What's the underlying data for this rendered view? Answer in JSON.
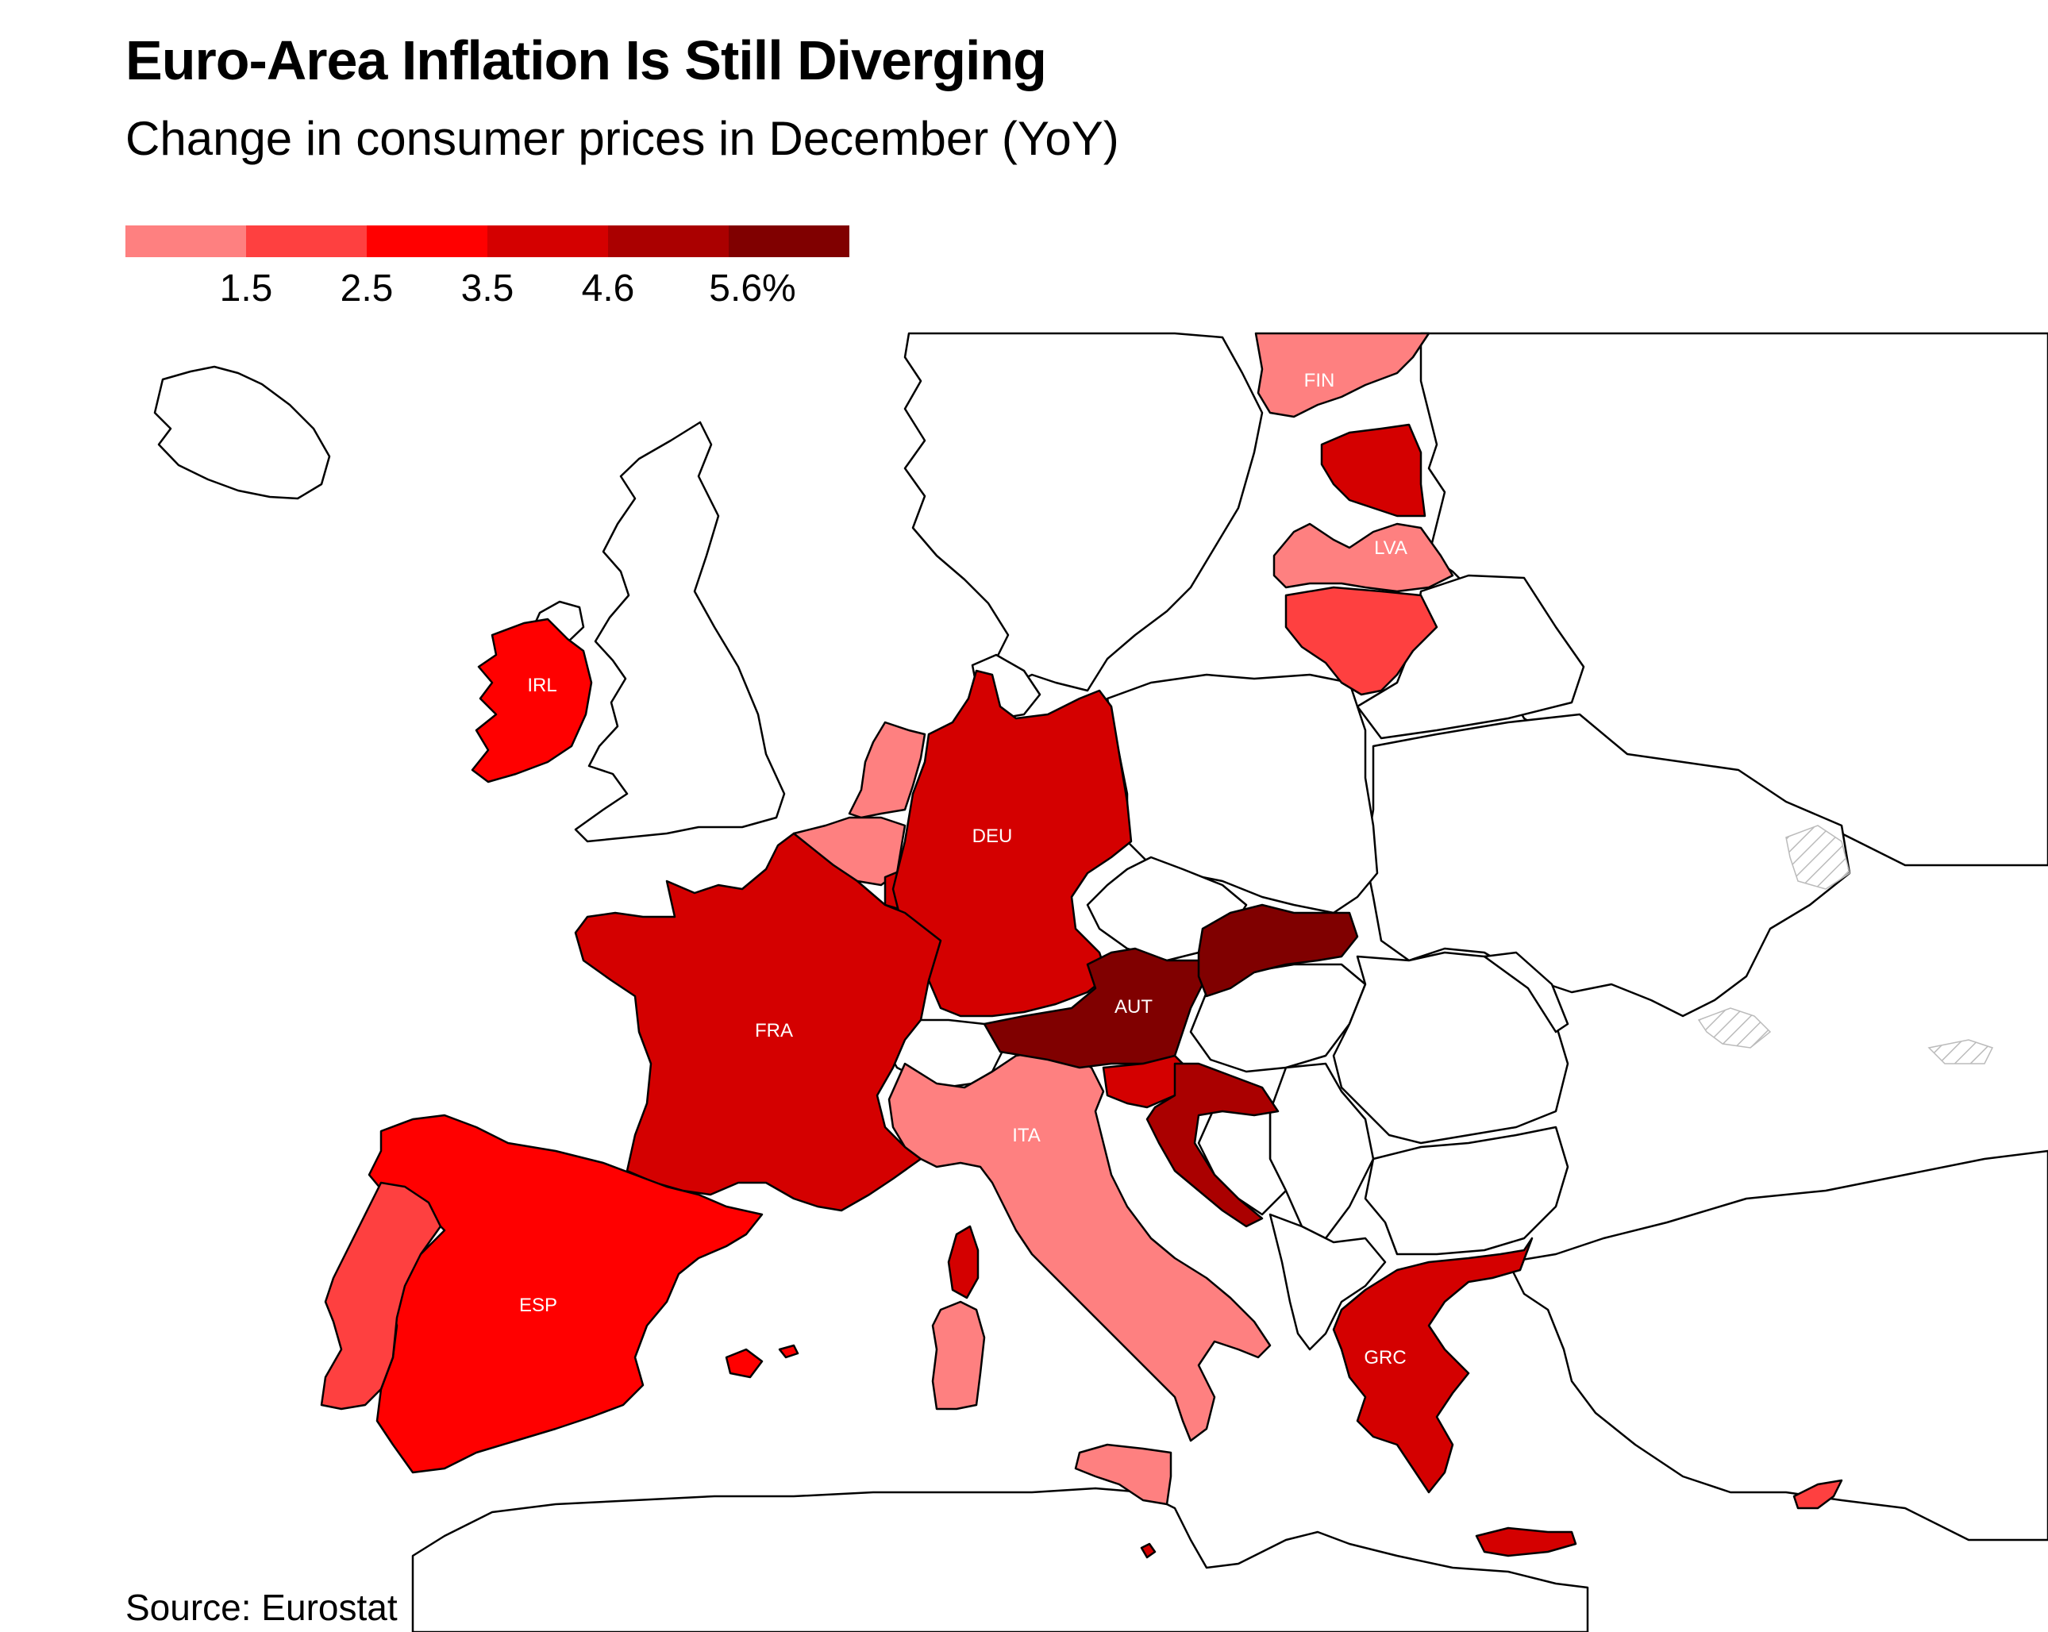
{
  "title": "Euro-Area Inflation Is Still Diverging",
  "subtitle": "Change in consumer prices in December (YoY)",
  "source": "Source: Eurostat",
  "legend": {
    "colors": [
      "#fe8080",
      "#fe4040",
      "#ff0000",
      "#d40000",
      "#aa0000",
      "#800000"
    ],
    "labels": [
      "1.5",
      "2.5",
      "3.5",
      "4.6",
      "5.6%"
    ]
  },
  "colors": {
    "non_euro_fill": "#ffffff",
    "outline": "#000000",
    "disputed_hatch": "#bbbbbb"
  },
  "countries": [
    {
      "code": "FIN",
      "label": "FIN",
      "color": "#fe8080"
    },
    {
      "code": "EST",
      "label": "",
      "color": "#d40000"
    },
    {
      "code": "LVA",
      "label": "LVA",
      "color": "#fe8080"
    },
    {
      "code": "LTU",
      "label": "",
      "color": "#fe4040"
    },
    {
      "code": "IRL",
      "label": "IRL",
      "color": "#ff0000"
    },
    {
      "code": "NLD",
      "label": "",
      "color": "#fe8080"
    },
    {
      "code": "BEL",
      "label": "",
      "color": "#fe8080"
    },
    {
      "code": "LUX",
      "label": "",
      "color": "#d40000"
    },
    {
      "code": "DEU",
      "label": "DEU",
      "color": "#d40000"
    },
    {
      "code": "FRA",
      "label": "FRA",
      "color": "#d40000"
    },
    {
      "code": "ESP",
      "label": "ESP",
      "color": "#ff0000"
    },
    {
      "code": "PRT",
      "label": "",
      "color": "#fe4040"
    },
    {
      "code": "ITA",
      "label": "ITA",
      "color": "#fe8080"
    },
    {
      "code": "AUT",
      "label": "AUT",
      "color": "#800000"
    },
    {
      "code": "SVK",
      "label": "",
      "color": "#800000"
    },
    {
      "code": "SVN",
      "label": "",
      "color": "#d40000"
    },
    {
      "code": "HRV",
      "label": "",
      "color": "#aa0000"
    },
    {
      "code": "GRC",
      "label": "GRC",
      "color": "#d40000"
    },
    {
      "code": "CYP",
      "label": "",
      "color": "#fe4040"
    },
    {
      "code": "MLT",
      "label": "",
      "color": "#d40000"
    }
  ]
}
